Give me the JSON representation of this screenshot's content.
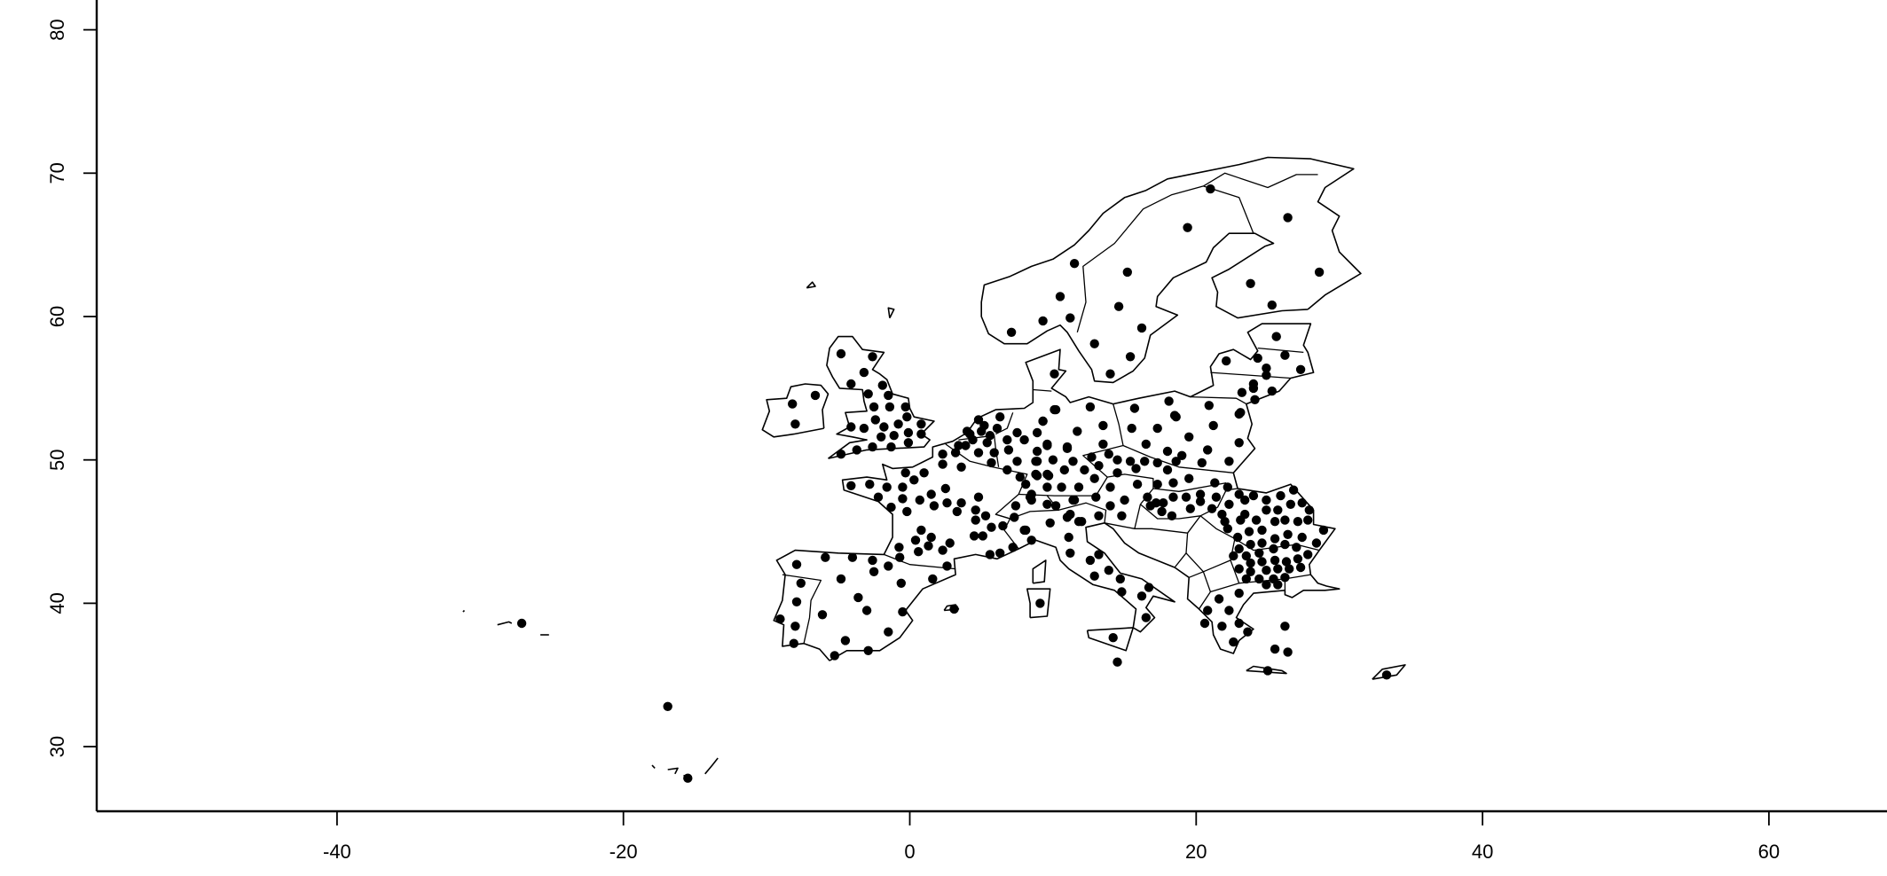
{
  "chart_data": {
    "type": "scatter",
    "title": "",
    "xlabel": "",
    "ylabel": "",
    "xlim": [
      -56.8,
      68.2
    ],
    "ylim": [
      25.5,
      82.1
    ],
    "x_ticks": [
      "-40",
      "-20",
      "0",
      "20",
      "40",
      "60"
    ],
    "y_ticks": [
      "30",
      "40",
      "50",
      "60",
      "70",
      "80"
    ],
    "grid": false,
    "legend": "none",
    "marker_color": "#000000",
    "outline_color": "#000000",
    "points": [
      [
        -4.8,
        57.4
      ],
      [
        -2.6,
        57.2
      ],
      [
        -3.2,
        56.1
      ],
      [
        -4.1,
        55.3
      ],
      [
        -1.9,
        55.2
      ],
      [
        -2.9,
        54.6
      ],
      [
        -1.5,
        54.5
      ],
      [
        -6.6,
        54.5
      ],
      [
        -8.2,
        53.9
      ],
      [
        -8.0,
        52.5
      ],
      [
        -2.5,
        53.7
      ],
      [
        -1.4,
        53.7
      ],
      [
        -0.3,
        53.7
      ],
      [
        -2.4,
        52.8
      ],
      [
        -1.8,
        52.3
      ],
      [
        -0.8,
        52.5
      ],
      [
        -0.2,
        53.0
      ],
      [
        -0.1,
        51.9
      ],
      [
        0.8,
        52.5
      ],
      [
        0.8,
        51.8
      ],
      [
        -4.1,
        52.3
      ],
      [
        -3.2,
        52.2
      ],
      [
        -2.0,
        51.6
      ],
      [
        -1.1,
        51.7
      ],
      [
        -1.3,
        50.9
      ],
      [
        -2.6,
        50.9
      ],
      [
        -3.7,
        50.7
      ],
      [
        -4.8,
        50.4
      ],
      [
        -0.1,
        51.2
      ],
      [
        4.8,
        52.8
      ],
      [
        6.3,
        53.0
      ],
      [
        4.0,
        52.0
      ],
      [
        5.0,
        52.0
      ],
      [
        6.1,
        52.2
      ],
      [
        4.4,
        51.4
      ],
      [
        5.4,
        51.2
      ],
      [
        3.4,
        51.0
      ],
      [
        3.9,
        51.0
      ],
      [
        4.8,
        50.5
      ],
      [
        5.9,
        50.5
      ],
      [
        2.3,
        50.4
      ],
      [
        3.2,
        50.5
      ],
      [
        6.8,
        51.4
      ],
      [
        6.9,
        50.7
      ],
      [
        2.3,
        49.7
      ],
      [
        3.6,
        49.5
      ],
      [
        5.7,
        49.8
      ],
      [
        6.8,
        49.3
      ],
      [
        4.2,
        51.8
      ],
      [
        5.2,
        52.4
      ],
      [
        5.6,
        51.7
      ],
      [
        7.5,
        51.9
      ],
      [
        8.0,
        51.4
      ],
      [
        8.9,
        51.9
      ],
      [
        9.6,
        51.0
      ],
      [
        10.1,
        53.5
      ],
      [
        9.3,
        52.7
      ],
      [
        11.7,
        52.0
      ],
      [
        11.0,
        50.9
      ],
      [
        7.5,
        49.9
      ],
      [
        8.8,
        49.9
      ],
      [
        10.0,
        50.0
      ],
      [
        11.4,
        49.9
      ],
      [
        10.8,
        49.3
      ],
      [
        12.2,
        49.3
      ],
      [
        7.7,
        48.8
      ],
      [
        8.8,
        49.0
      ],
      [
        9.6,
        49.0
      ],
      [
        9.6,
        48.1
      ],
      [
        10.6,
        48.1
      ],
      [
        11.8,
        48.1
      ],
      [
        8.4,
        47.4
      ],
      [
        9.6,
        46.9
      ],
      [
        11.5,
        47.2
      ],
      [
        11.2,
        46.2
      ],
      [
        12.0,
        45.7
      ],
      [
        7.4,
        46.8
      ],
      [
        7.3,
        46.0
      ],
      [
        8.1,
        45.1
      ],
      [
        11.1,
        44.6
      ],
      [
        7.2,
        43.9
      ],
      [
        1.0,
        49.1
      ],
      [
        -0.3,
        49.1
      ],
      [
        0.3,
        48.6
      ],
      [
        2.5,
        48.0
      ],
      [
        1.5,
        47.6
      ],
      [
        0.7,
        47.2
      ],
      [
        -0.5,
        48.1
      ],
      [
        -1.6,
        48.1
      ],
      [
        -4.1,
        48.2
      ],
      [
        -2.8,
        48.3
      ],
      [
        -2.2,
        47.4
      ],
      [
        -0.5,
        47.3
      ],
      [
        -1.3,
        46.7
      ],
      [
        -0.2,
        46.4
      ],
      [
        1.7,
        46.8
      ],
      [
        2.6,
        47.0
      ],
      [
        3.6,
        47.0
      ],
      [
        3.3,
        46.4
      ],
      [
        4.8,
        47.4
      ],
      [
        4.6,
        46.5
      ],
      [
        5.3,
        46.1
      ],
      [
        4.6,
        45.8
      ],
      [
        5.7,
        45.3
      ],
      [
        6.5,
        45.4
      ],
      [
        0.8,
        45.1
      ],
      [
        0.4,
        44.4
      ],
      [
        1.5,
        44.6
      ],
      [
        2.8,
        44.2
      ],
      [
        5.1,
        44.7
      ],
      [
        4.5,
        44.7
      ],
      [
        -0.75,
        43.9
      ],
      [
        0.6,
        43.6
      ],
      [
        2.3,
        43.7
      ],
      [
        6.3,
        43.5
      ],
      [
        -0.7,
        43.2
      ],
      [
        1.3,
        44.0
      ],
      [
        5.6,
        43.4
      ],
      [
        21.0,
        68.9
      ],
      [
        19.4,
        66.2
      ],
      [
        26.4,
        66.9
      ],
      [
        15.2,
        63.1
      ],
      [
        11.5,
        63.7
      ],
      [
        28.6,
        63.1
      ],
      [
        23.8,
        62.3
      ],
      [
        10.5,
        61.4
      ],
      [
        14.6,
        60.7
      ],
      [
        25.3,
        60.8
      ],
      [
        9.3,
        59.7
      ],
      [
        11.2,
        59.9
      ],
      [
        16.2,
        59.2
      ],
      [
        12.9,
        58.1
      ],
      [
        15.4,
        57.2
      ],
      [
        14.0,
        56.0
      ],
      [
        25.6,
        58.6
      ],
      [
        22.1,
        56.9
      ],
      [
        24.3,
        57.1
      ],
      [
        26.2,
        57.3
      ],
      [
        27.3,
        56.3
      ],
      [
        24.9,
        56.4
      ],
      [
        24.9,
        55.9
      ],
      [
        24.0,
        55.3
      ],
      [
        24.0,
        55.0
      ],
      [
        23.2,
        54.7
      ],
      [
        25.3,
        54.8
      ],
      [
        24.1,
        54.2
      ],
      [
        10.1,
        56.0
      ],
      [
        10.2,
        53.5
      ],
      [
        12.6,
        53.7
      ],
      [
        15.7,
        53.6
      ],
      [
        18.1,
        54.1
      ],
      [
        20.9,
        53.8
      ],
      [
        23.1,
        53.3
      ],
      [
        18.5,
        53.1
      ],
      [
        7.1,
        58.9
      ],
      [
        9.3,
        52.7
      ],
      [
        13.5,
        52.4
      ],
      [
        15.5,
        52.2
      ],
      [
        17.3,
        52.2
      ],
      [
        18.6,
        53.0
      ],
      [
        21.2,
        52.4
      ],
      [
        23.0,
        53.2
      ],
      [
        23.0,
        51.2
      ],
      [
        19.5,
        51.6
      ],
      [
        20.8,
        50.7
      ],
      [
        22.3,
        49.9
      ],
      [
        20.4,
        49.8
      ],
      [
        19.0,
        50.3
      ],
      [
        18.0,
        50.6
      ],
      [
        16.5,
        51.1
      ],
      [
        15.4,
        49.9
      ],
      [
        14.5,
        50.0
      ],
      [
        13.9,
        50.4
      ],
      [
        13.5,
        51.1
      ],
      [
        12.7,
        50.2
      ],
      [
        13.2,
        49.6
      ],
      [
        11.0,
        50.8
      ],
      [
        9.6,
        51.1
      ],
      [
        8.9,
        50.6
      ],
      [
        8.9,
        49.9
      ],
      [
        9.7,
        48.9
      ],
      [
        8.9,
        48.9
      ],
      [
        8.1,
        48.3
      ],
      [
        12.9,
        48.7
      ],
      [
        14.5,
        49.1
      ],
      [
        15.8,
        49.4
      ],
      [
        16.4,
        49.9
      ],
      [
        17.3,
        49.8
      ],
      [
        18.0,
        49.3
      ],
      [
        18.6,
        49.9
      ],
      [
        19.5,
        48.7
      ],
      [
        18.4,
        48.4
      ],
      [
        17.3,
        48.3
      ],
      [
        15.9,
        48.3
      ],
      [
        14.0,
        48.1
      ],
      [
        13.0,
        47.4
      ],
      [
        11.4,
        47.2
      ],
      [
        10.2,
        46.8
      ],
      [
        8.5,
        47.2
      ],
      [
        8.5,
        47.6
      ],
      [
        15.0,
        47.2
      ],
      [
        14.0,
        46.8
      ],
      [
        16.6,
        47.4
      ],
      [
        17.2,
        47.0
      ],
      [
        17.7,
        47.0
      ],
      [
        18.4,
        47.4
      ],
      [
        19.3,
        47.4
      ],
      [
        20.3,
        47.6
      ],
      [
        20.3,
        47.1
      ],
      [
        21.3,
        48.4
      ],
      [
        21.4,
        47.4
      ],
      [
        22.2,
        48.1
      ],
      [
        23.0,
        47.6
      ],
      [
        23.4,
        47.2
      ],
      [
        24.0,
        47.5
      ],
      [
        24.9,
        47.2
      ],
      [
        25.9,
        47.5
      ],
      [
        26.8,
        47.9
      ],
      [
        27.4,
        47.0
      ],
      [
        26.6,
        46.9
      ],
      [
        25.7,
        46.5
      ],
      [
        24.9,
        46.5
      ],
      [
        24.2,
        45.8
      ],
      [
        23.4,
        46.2
      ],
      [
        22.3,
        46.9
      ],
      [
        21.8,
        46.2
      ],
      [
        21.1,
        46.6
      ],
      [
        19.6,
        46.6
      ],
      [
        18.3,
        46.1
      ],
      [
        17.6,
        46.4
      ],
      [
        16.8,
        46.8
      ],
      [
        14.8,
        46.1
      ],
      [
        13.2,
        46.1
      ],
      [
        11.8,
        45.7
      ],
      [
        11.0,
        46.0
      ],
      [
        9.8,
        45.6
      ],
      [
        8.0,
        45.1
      ],
      [
        8.5,
        44.4
      ],
      [
        11.2,
        43.5
      ],
      [
        12.6,
        43.0
      ],
      [
        13.2,
        43.4
      ],
      [
        13.9,
        42.3
      ],
      [
        12.9,
        41.9
      ],
      [
        14.7,
        41.7
      ],
      [
        14.8,
        40.8
      ],
      [
        16.2,
        40.5
      ],
      [
        16.7,
        41.1
      ],
      [
        16.5,
        39.0
      ],
      [
        14.2,
        37.6
      ],
      [
        14.5,
        35.9
      ],
      [
        9.1,
        40.0
      ],
      [
        22.0,
        45.7
      ],
      [
        23.1,
        45.8
      ],
      [
        22.2,
        45.2
      ],
      [
        22.9,
        44.6
      ],
      [
        23.7,
        45.0
      ],
      [
        24.6,
        45.1
      ],
      [
        25.5,
        45.7
      ],
      [
        26.2,
        45.8
      ],
      [
        27.1,
        45.7
      ],
      [
        27.9,
        46.5
      ],
      [
        27.8,
        45.8
      ],
      [
        28.9,
        45.1
      ],
      [
        28.4,
        44.2
      ],
      [
        27.4,
        44.6
      ],
      [
        26.4,
        44.8
      ],
      [
        25.5,
        44.5
      ],
      [
        24.6,
        44.2
      ],
      [
        23.8,
        44.1
      ],
      [
        23.0,
        43.8
      ],
      [
        22.6,
        43.3
      ],
      [
        23.5,
        43.3
      ],
      [
        24.4,
        43.5
      ],
      [
        25.4,
        43.8
      ],
      [
        26.2,
        44.1
      ],
      [
        27.0,
        43.9
      ],
      [
        27.8,
        43.4
      ],
      [
        27.1,
        43.1
      ],
      [
        26.3,
        42.9
      ],
      [
        25.5,
        43.0
      ],
      [
        24.6,
        42.9
      ],
      [
        23.8,
        42.8
      ],
      [
        23.0,
        42.4
      ],
      [
        23.8,
        42.2
      ],
      [
        24.9,
        42.3
      ],
      [
        25.7,
        42.4
      ],
      [
        26.5,
        42.4
      ],
      [
        27.3,
        42.5
      ],
      [
        23.5,
        41.7
      ],
      [
        24.4,
        41.7
      ],
      [
        25.4,
        41.7
      ],
      [
        26.2,
        41.8
      ],
      [
        24.9,
        41.3
      ],
      [
        25.7,
        41.3
      ],
      [
        23.0,
        40.7
      ],
      [
        21.6,
        40.3
      ],
      [
        22.3,
        39.5
      ],
      [
        20.8,
        39.5
      ],
      [
        20.6,
        38.6
      ],
      [
        21.8,
        38.4
      ],
      [
        23.0,
        38.6
      ],
      [
        23.6,
        38.0
      ],
      [
        22.6,
        37.3
      ],
      [
        26.2,
        38.4
      ],
      [
        25.5,
        36.8
      ],
      [
        26.4,
        36.6
      ],
      [
        25.0,
        35.3
      ],
      [
        -7.9,
        42.7
      ],
      [
        -5.9,
        43.2
      ],
      [
        -4.0,
        43.2
      ],
      [
        -2.6,
        43.0
      ],
      [
        -1.5,
        42.6
      ],
      [
        -2.5,
        42.2
      ],
      [
        -4.8,
        41.7
      ],
      [
        -7.6,
        41.4
      ],
      [
        -0.6,
        41.4
      ],
      [
        1.6,
        41.7
      ],
      [
        2.6,
        42.6
      ],
      [
        -3.6,
        40.4
      ],
      [
        -7.9,
        40.1
      ],
      [
        -6.1,
        39.2
      ],
      [
        -3.0,
        39.5
      ],
      [
        -0.5,
        39.4
      ],
      [
        -9.05,
        38.9
      ],
      [
        -8.0,
        38.4
      ],
      [
        -1.5,
        38.0
      ],
      [
        -4.5,
        37.4
      ],
      [
        -8.1,
        37.2
      ],
      [
        -2.9,
        36.7
      ],
      [
        -5.25,
        36.35
      ],
      [
        3.1,
        39.6
      ],
      [
        -27.1,
        38.6
      ],
      [
        -16.9,
        32.8
      ],
      [
        -15.5,
        27.8
      ],
      [
        33.3,
        35.0
      ]
    ]
  }
}
